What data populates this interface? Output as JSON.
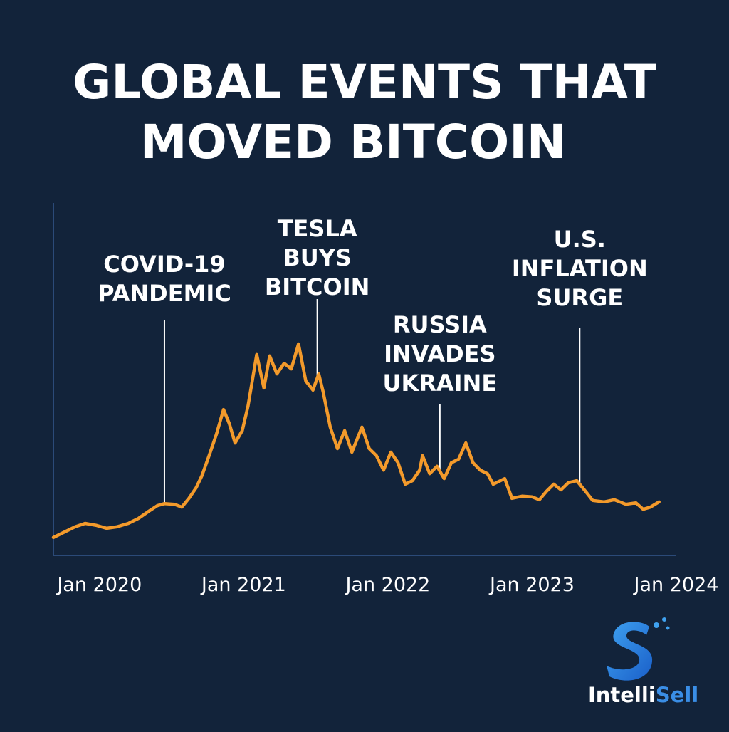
{
  "chart_data": {
    "type": "line",
    "title": [
      "GLOBAL EVENTS THAT",
      "MOVED BITCOIN"
    ],
    "x": [
      2019.68,
      2019.75,
      2019.83,
      2019.9,
      2019.98,
      2020.05,
      2020.12,
      2020.2,
      2020.27,
      2020.34,
      2020.4,
      2020.45,
      2020.52,
      2020.57,
      2020.62,
      2020.67,
      2020.71,
      2020.76,
      2020.81,
      2020.86,
      2020.9,
      2020.94,
      2020.99,
      2021.03,
      2021.09,
      2021.14,
      2021.18,
      2021.23,
      2021.28,
      2021.33,
      2021.38,
      2021.43,
      2021.48,
      2021.52,
      2021.55,
      2021.6,
      2021.65,
      2021.7,
      2021.75,
      2021.82,
      2021.87,
      2021.92,
      2021.97,
      2022.02,
      2022.07,
      2022.12,
      2022.17,
      2022.22,
      2022.24,
      2022.29,
      2022.34,
      2022.39,
      2022.44,
      2022.49,
      2022.54,
      2022.59,
      2022.64,
      2022.69,
      2022.73,
      2022.81,
      2022.86,
      2022.93,
      2023.0,
      2023.05,
      2023.1,
      2023.15,
      2023.2,
      2023.25,
      2023.31,
      2023.37,
      2023.42,
      2023.5,
      2023.57,
      2023.65,
      2023.72,
      2023.77,
      2023.82,
      2023.88
    ],
    "values": [
      5.1,
      6.5,
      8.1,
      9.1,
      8.5,
      7.7,
      8.1,
      9.1,
      10.5,
      12.5,
      14.1,
      14.7,
      14.5,
      13.7,
      16.2,
      19.2,
      22.6,
      28.3,
      34.3,
      41.4,
      37.4,
      31.9,
      35.4,
      42.4,
      57.0,
      47.5,
      56.6,
      51.5,
      54.5,
      52.9,
      60.0,
      49.5,
      46.9,
      51.5,
      46.5,
      36.4,
      30.3,
      35.4,
      29.3,
      36.4,
      30.3,
      28.3,
      24.2,
      29.3,
      26.3,
      20.2,
      21.2,
      24.2,
      28.3,
      23.2,
      25.3,
      21.8,
      26.3,
      27.3,
      31.9,
      26.3,
      24.2,
      23.2,
      20.2,
      21.8,
      16.2,
      16.8,
      16.6,
      15.8,
      18.2,
      20.2,
      18.6,
      20.6,
      21.2,
      18.2,
      15.6,
      15.2,
      15.8,
      14.5,
      14.9,
      13.1,
      13.7,
      15.2
    ],
    "color": "#f39a2b",
    "xlim": [
      2019.68,
      2024.0
    ],
    "ylim": [
      0,
      100
    ],
    "xticks": [
      {
        "value": 2020,
        "label": "Jan 2020"
      },
      {
        "value": 2021,
        "label": "Jan 2021"
      },
      {
        "value": 2022,
        "label": "Jan 2022"
      },
      {
        "value": 2023,
        "label": "Jan 2023"
      },
      {
        "value": 2024,
        "label": "Jan 2024"
      }
    ],
    "annotations": [
      {
        "lines": [
          "COVID-19",
          "PANDEMIC"
        ],
        "x": 2020.45
      },
      {
        "lines": [
          "TESLA",
          "BUYS",
          "BITCOIN"
        ],
        "x": 2021.51
      },
      {
        "lines": [
          "RUSSIA",
          "INVADES",
          "UKRAINE"
        ],
        "x": 2022.36
      },
      {
        "lines": [
          "U.S.",
          "INFLATION",
          "SURGE"
        ],
        "x": 2023.33
      }
    ]
  },
  "brand": [
    "Intelli",
    "Sell"
  ]
}
